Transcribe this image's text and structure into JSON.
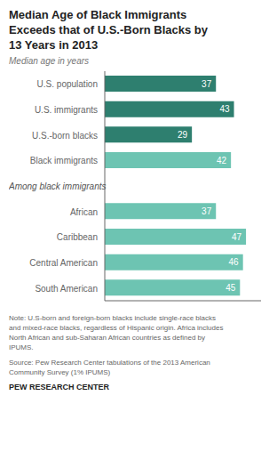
{
  "chart_data": {
    "type": "bar",
    "orientation": "horizontal",
    "title": "Median Age of Black Immigrants\nExceeds that of U.S.-Born Blacks by\n13 Years in 2013",
    "subtitle": "Median age in years",
    "categories": [
      "U.S. population",
      "U.S. immigrants",
      "U.S.-born blacks",
      "Black immigrants",
      null,
      "African",
      "Caribbean",
      "Central American",
      "South American"
    ],
    "values": [
      37,
      43,
      29,
      42,
      null,
      37,
      47,
      46,
      45
    ],
    "colors": [
      "#2e7f6f",
      "#2e7f6f",
      "#2e7f6f",
      "#6dc4b2",
      null,
      "#6dc4b2",
      "#6dc4b2",
      "#6dc4b2",
      "#6dc4b2"
    ],
    "annotation": "Among black immigrants",
    "note": "Note: U.S-born and foreign-born blacks include single-race blacks\nand mixed-race blacks, regardless of Hispanic origin. Africa includes\nNorth African and sub-Saharan African countries as defined by\nIPUMS.",
    "source": "Source: Pew Research Center tabulations of the 2013 American\nCommunity Survey (1% IPUMS)",
    "footer": "PEW RESEARCH CENTER",
    "xlim": [
      0,
      52
    ],
    "grid": false,
    "data_labels": true,
    "tick_labels": false
  }
}
